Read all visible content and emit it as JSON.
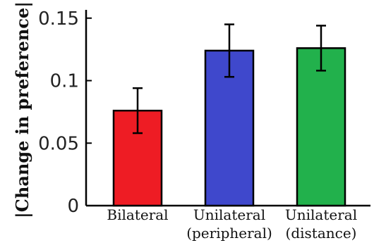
{
  "chart_data": {
    "type": "bar",
    "categories": [
      [
        "Bilateral"
      ],
      [
        "Unilateral",
        "(peripheral)"
      ],
      [
        "Unilateral",
        "(distance)"
      ]
    ],
    "values": [
      0.076,
      0.124,
      0.126
    ],
    "errors": [
      0.018,
      0.021,
      0.018
    ],
    "bar_colors": [
      "#ee1c24",
      "#3f48cc",
      "#22b14c"
    ],
    "title": "",
    "xlabel": "",
    "ylabel": "|Change in preference|",
    "ylim": [
      0,
      0.16
    ],
    "yticks": [
      0,
      0.05,
      0.1,
      0.15
    ],
    "ytick_labels": [
      "0",
      "0.05",
      "0.1",
      "0.15"
    ],
    "grid": false,
    "legend": "none"
  }
}
